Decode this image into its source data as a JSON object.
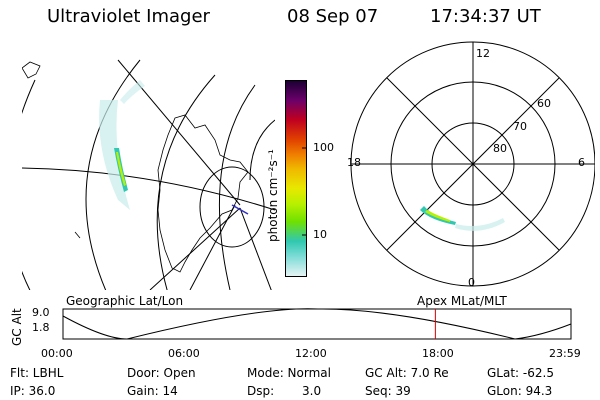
{
  "header": {
    "instrument": "Ultraviolet Imager",
    "date": "08 Sep 07",
    "time": "17:34:37 UT"
  },
  "colorbar": {
    "unit_label": "photon cm⁻²s⁻¹",
    "ticks": [
      "100",
      "10"
    ],
    "colors": [
      "#1b0033",
      "#3a0060",
      "#6a006a",
      "#9a004a",
      "#c00020",
      "#e04000",
      "#f08000",
      "#f0b800",
      "#e8e800",
      "#b8f000",
      "#70e000",
      "#30d070",
      "#30c8b0",
      "#80dcd8",
      "#c8ecec"
    ]
  },
  "polar_plot": {
    "mlt_labels": [
      "12",
      "18",
      "6",
      "0"
    ],
    "lat_labels": [
      "60",
      "70",
      "80"
    ]
  },
  "orbit_panel": {
    "left_label": "Geographic Lat/Lon",
    "right_label": "Apex MLat/MLT",
    "axis_label": "GC Alt",
    "y_ticks": [
      "9.0",
      "1.8"
    ],
    "time_ticks": [
      "00:00",
      "06:00",
      "12:00",
      "18:00",
      "23:59"
    ],
    "current_time_fraction": 0.733,
    "marker_color": "#d00000"
  },
  "info": {
    "flt": "Flt: LBHL",
    "ip": "IP: 36.0",
    "door": "Door: Open",
    "gain": "Gain: 14",
    "mode": "Mode: Normal",
    "dsp_label": "Dsp:",
    "dsp_value": "3.0",
    "gc_alt": "GC Alt: 7.0 Re",
    "seq": "Seq: 39",
    "glat": "GLat: -62.5",
    "glon": "GLon:  94.3"
  }
}
